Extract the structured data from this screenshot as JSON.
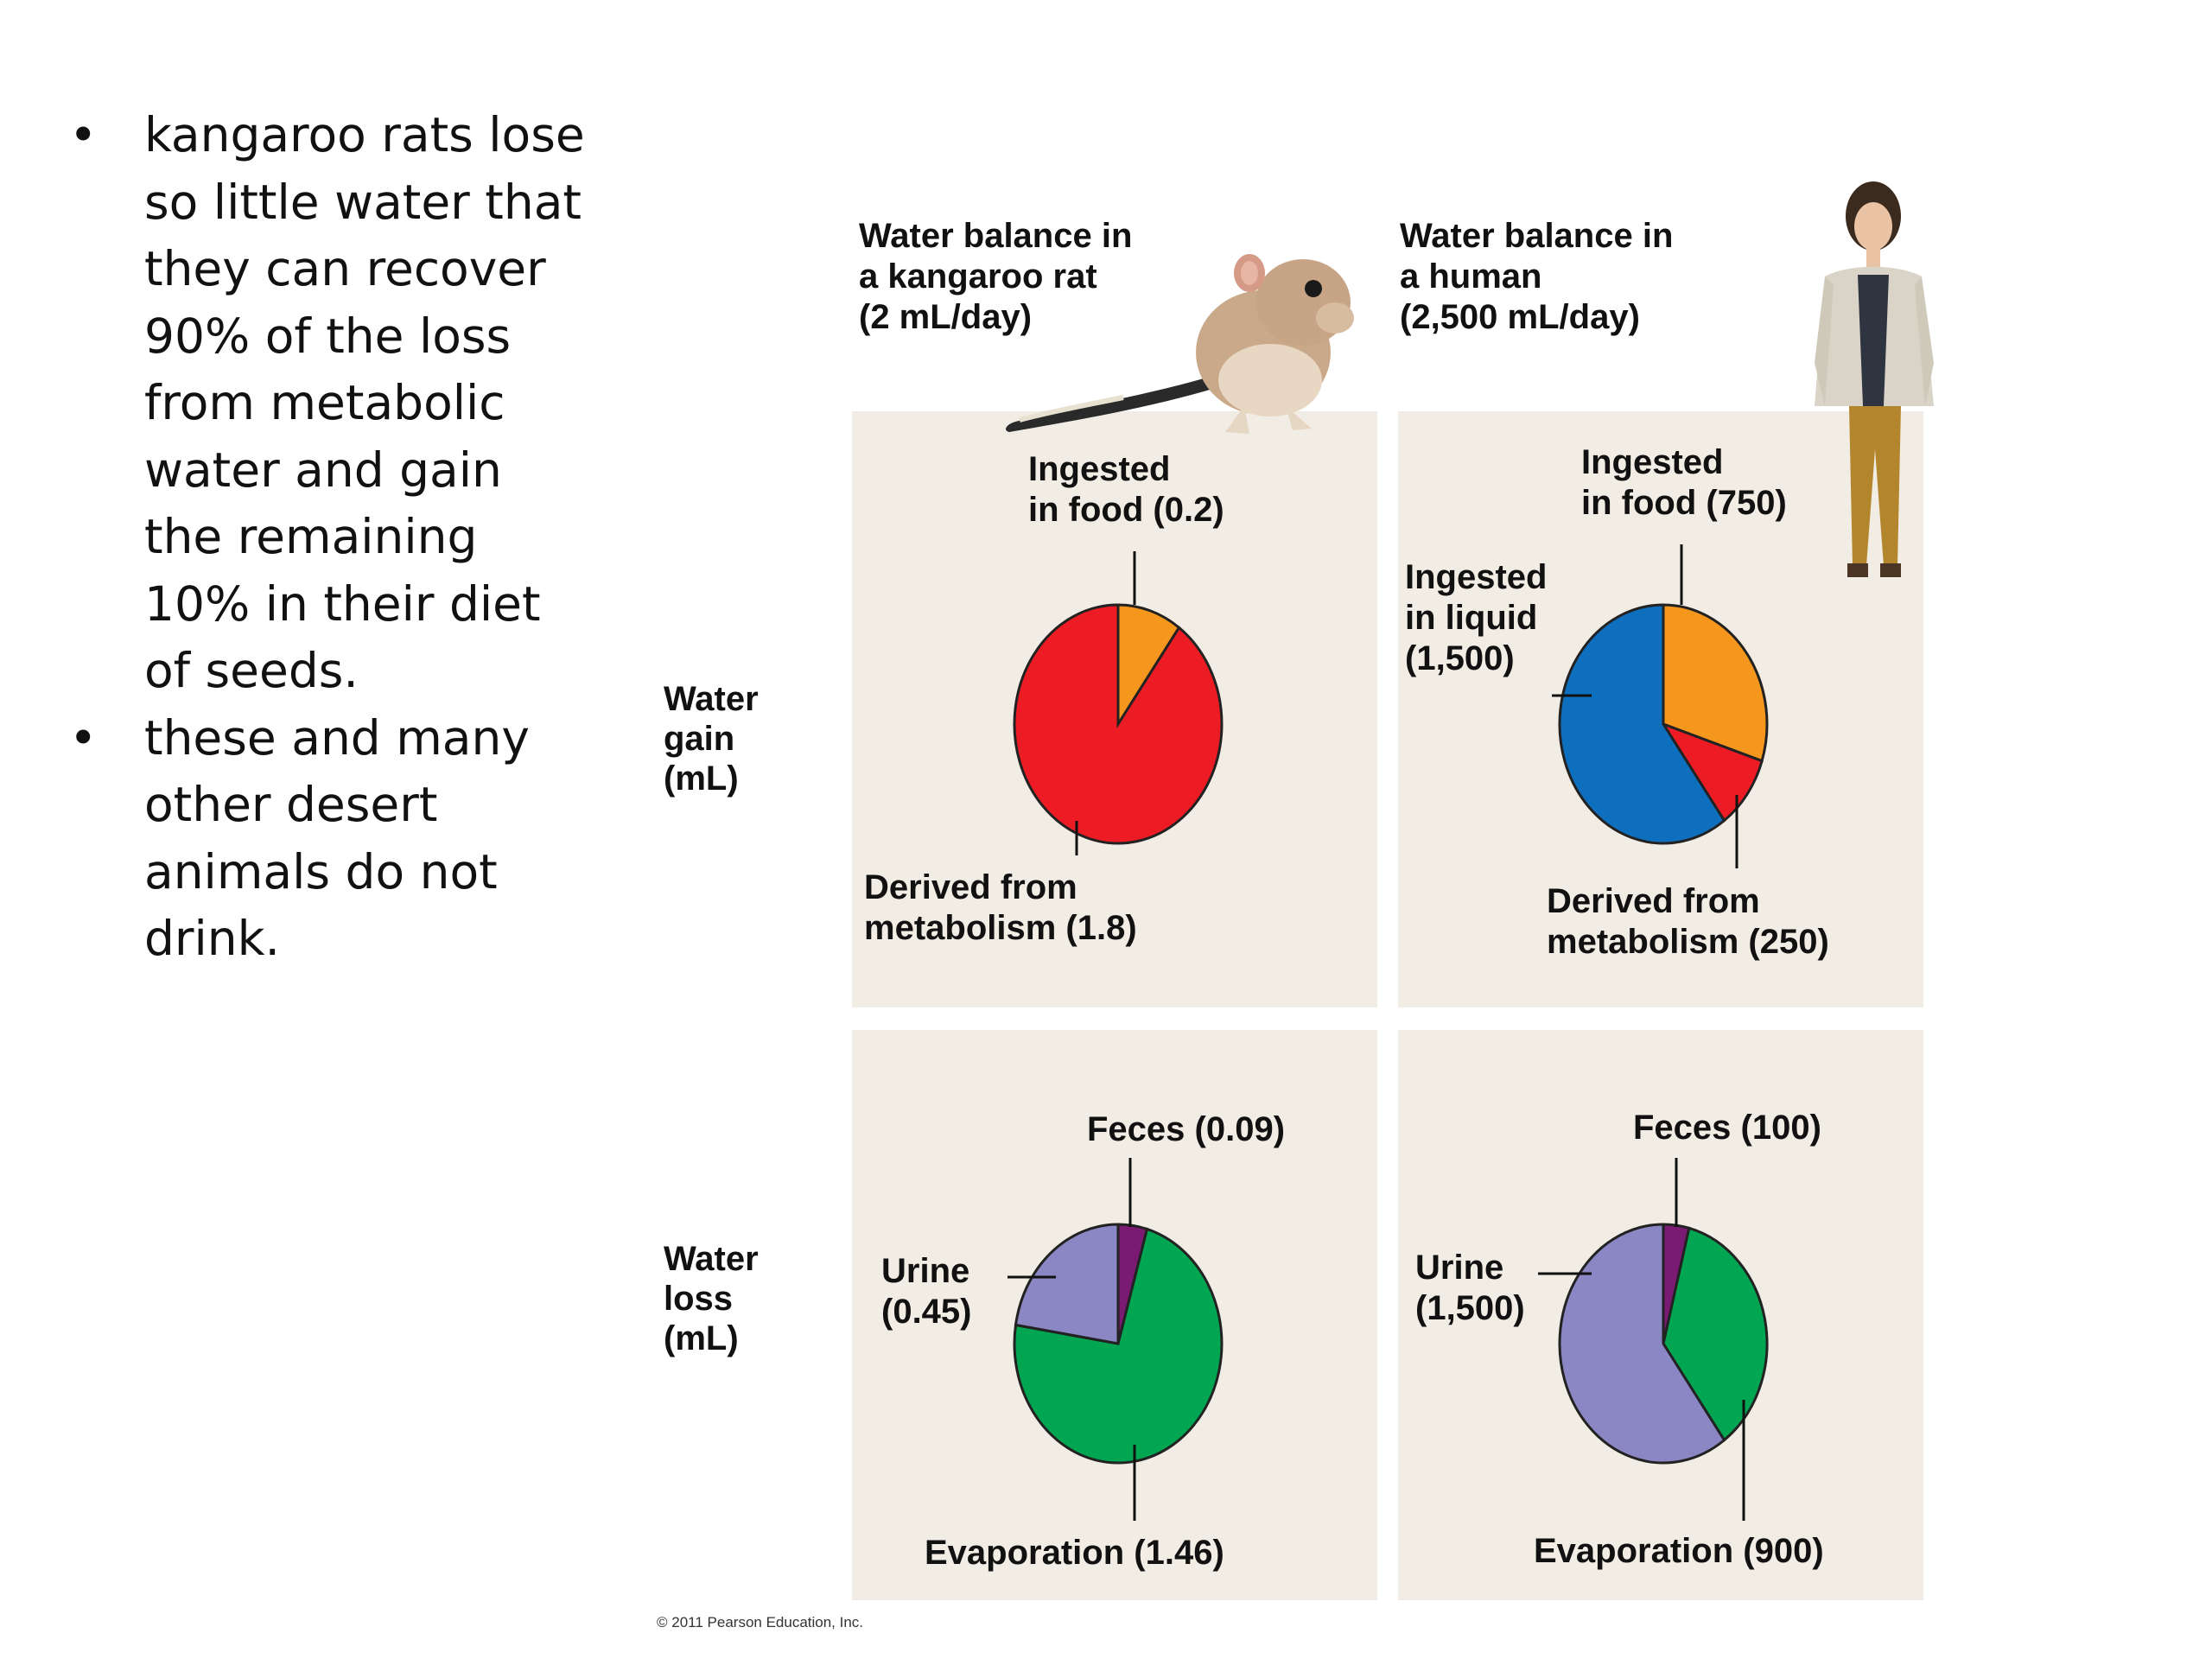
{
  "bullets": [
    "kangaroo rats lose so little water that they can recover 90% of the loss from metabolic water and gain the remaining 10% in their diet of seeds.",
    "these and many other desert animals do not drink."
  ],
  "bullet_lines": [
    [
      "kangaroo rats lose",
      "so little water that",
      "they can recover",
      "90% of the loss",
      "from metabolic",
      "water and gain",
      "the remaining",
      "10% in their diet",
      "of seeds."
    ],
    [
      "these and many",
      "other desert",
      "animals do not",
      "drink."
    ]
  ],
  "colors": {
    "panel_bg": "#f1ede4",
    "food": "#f5961d",
    "metabolism": "#ed1c24",
    "liquid": "#0f6fbf",
    "feces": "#7a1a73",
    "urine": "#8b86c4",
    "evaporation": "#00a651"
  },
  "row_labels": {
    "gain": [
      "Water",
      "gain",
      "(mL)"
    ],
    "loss": [
      "Water",
      "loss",
      "(mL)"
    ]
  },
  "columns": {
    "rat": [
      "Water balance in",
      "a kangaroo rat",
      "(2 mL/day)"
    ],
    "human": [
      "Water balance in",
      "a human",
      "(2,500 mL/day)"
    ]
  },
  "icons": [
    "kangaroo-rat-illustration",
    "human-illustration"
  ],
  "copyright": "© 2011 Pearson Education, Inc.",
  "chart_data": [
    {
      "type": "pie",
      "title": "Water gain (mL) — kangaroo rat",
      "slices": [
        {
          "label": "Ingested in food (0.2)",
          "value": 0.2,
          "color": "#f5961d"
        },
        {
          "label": "Derived from metabolism (1.8)",
          "value": 1.8,
          "color": "#ed1c24"
        }
      ],
      "label_lines": {
        "food": [
          "Ingested",
          "in food (0.2)"
        ],
        "metabolism": [
          "Derived from",
          "metabolism (1.8)"
        ]
      }
    },
    {
      "type": "pie",
      "title": "Water gain (mL) — human",
      "slices": [
        {
          "label": "Ingested in food (750)",
          "value": 750,
          "color": "#f5961d"
        },
        {
          "label": "Derived from metabolism (250)",
          "value": 250,
          "color": "#ed1c24"
        },
        {
          "label": "Ingested in liquid (1,500)",
          "value": 1500,
          "color": "#0f6fbf"
        }
      ],
      "label_lines": {
        "food": [
          "Ingested",
          "in food (750)"
        ],
        "metabolism": [
          "Derived from",
          "metabolism (250)"
        ],
        "liquid": [
          "Ingested",
          "in liquid",
          "(1,500)"
        ]
      }
    },
    {
      "type": "pie",
      "title": "Water loss (mL) — kangaroo rat",
      "slices": [
        {
          "label": "Feces (0.09)",
          "value": 0.09,
          "color": "#7a1a73"
        },
        {
          "label": "Evaporation (1.46)",
          "value": 1.46,
          "color": "#00a651"
        },
        {
          "label": "Urine (0.45)",
          "value": 0.45,
          "color": "#8b86c4"
        }
      ],
      "label_lines": {
        "feces": [
          "Feces (0.09)"
        ],
        "evaporation": [
          "Evaporation (1.46)"
        ],
        "urine": [
          "Urine",
          "(0.45)"
        ]
      }
    },
    {
      "type": "pie",
      "title": "Water loss (mL) — human",
      "slices": [
        {
          "label": "Feces (100)",
          "value": 100,
          "color": "#7a1a73"
        },
        {
          "label": "Evaporation (900)",
          "value": 900,
          "color": "#00a651"
        },
        {
          "label": "Urine (1,500)",
          "value": 1500,
          "color": "#8b86c4"
        }
      ],
      "label_lines": {
        "feces": [
          "Feces (100)"
        ],
        "evaporation": [
          "Evaporation (900)"
        ],
        "urine": [
          "Urine",
          "(1,500)"
        ]
      }
    }
  ]
}
